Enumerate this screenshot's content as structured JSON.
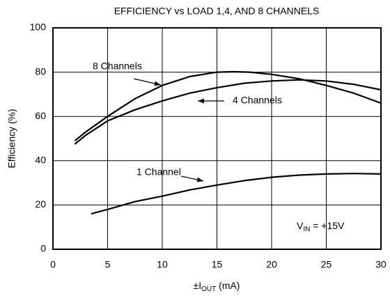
{
  "chart_data": {
    "type": "line",
    "title": "EFFICIENCY vs LOAD 1,4, AND 8 CHANNELS",
    "ylabel": "Efficiency (%)",
    "xlabel": {
      "main": "±I",
      "sub": "OUT",
      "rest": " (mA)"
    },
    "xlim": [
      0,
      30
    ],
    "xticks": [
      0,
      5,
      10,
      15,
      20,
      25,
      30
    ],
    "ylim": [
      0,
      100
    ],
    "yticks": [
      0,
      20,
      40,
      60,
      80,
      100
    ],
    "grid": true,
    "series": [
      {
        "name": "8 Channels",
        "color": "#000000",
        "x": [
          2,
          3,
          5,
          7.5,
          10,
          12.5,
          15,
          16.5,
          18,
          20,
          22.5,
          25,
          27.5,
          30
        ],
        "values": [
          49,
          53,
          60,
          68,
          74,
          78,
          80,
          80.2,
          80,
          79,
          77,
          74,
          70.5,
          66
        ]
      },
      {
        "name": "4 Channels",
        "color": "#000000",
        "x": [
          2,
          3,
          5,
          7.5,
          10,
          12.5,
          15,
          17.5,
          20,
          22.5,
          25,
          27.5,
          30
        ],
        "values": [
          47.5,
          51.5,
          58,
          63,
          67,
          70.5,
          73,
          75,
          76,
          76.5,
          76,
          74.5,
          72
        ]
      },
      {
        "name": "1 Channel",
        "color": "#000000",
        "x": [
          3.5,
          5,
          7.5,
          10,
          12.5,
          15,
          17.5,
          20,
          22.5,
          25,
          27.5,
          30
        ],
        "values": [
          16,
          18,
          21.5,
          24,
          26.8,
          29,
          31,
          32.5,
          33.5,
          34,
          34.2,
          34
        ]
      }
    ],
    "annotation": {
      "main": "V",
      "sub": "IN",
      "rest": " = +15V"
    }
  }
}
